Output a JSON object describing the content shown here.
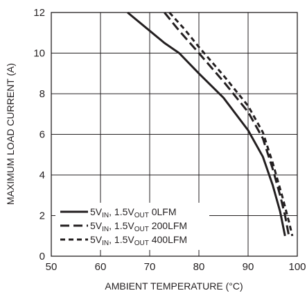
{
  "chart_data": {
    "type": "line",
    "xlabel": "AMBIENT TEMPERATURE (°C)",
    "ylabel": "MAXIMUM LOAD CURRENT (A)",
    "xlim": [
      50,
      100
    ],
    "ylim": [
      0,
      12
    ],
    "xticks": [
      50,
      60,
      70,
      80,
      90,
      100
    ],
    "yticks": [
      0,
      2,
      4,
      6,
      8,
      10,
      12
    ],
    "grid": true,
    "legend_position": "bottom-left",
    "series": [
      {
        "name": "5VIN, 1.5VOUT 0LFM",
        "legend": {
          "a": "5V",
          "a_sub": "IN",
          "b": ", 1.5V",
          "b_sub": "OUT",
          "c": " 0LFM"
        },
        "style": "solid",
        "x": [
          65.5,
          70,
          73,
          76,
          80,
          85,
          90,
          93,
          95,
          96.5,
          97.5
        ],
        "y": [
          12,
          11.1,
          10.5,
          10,
          9,
          7.8,
          6.2,
          4.9,
          3.5,
          2.2,
          1
        ]
      },
      {
        "name": "5VIN, 1.5VOUT 200LFM",
        "legend": {
          "a": "5V",
          "a_sub": "IN",
          "b": ", 1.5V",
          "b_sub": "OUT",
          "c": " 200LFM"
        },
        "style": "dash",
        "x": [
          73,
          76,
          80,
          85,
          90,
          93,
          95,
          96.5,
          97.5,
          98.3
        ],
        "y": [
          12,
          11.1,
          10,
          8.6,
          7.1,
          5.8,
          4.3,
          3,
          2,
          1
        ]
      },
      {
        "name": "5VIN, 1.5VOUT 400LFM",
        "legend": {
          "a": "5V",
          "a_sub": "IN",
          "b": ", 1.5V",
          "b_sub": "OUT",
          "c": " 400LFM"
        },
        "style": "shortdash",
        "x": [
          74,
          77,
          80,
          85,
          90,
          93,
          95,
          97,
          98.3,
          99
        ],
        "y": [
          12,
          11.2,
          10.3,
          8.9,
          7.4,
          6.1,
          4.6,
          2.9,
          1.7,
          1
        ]
      }
    ]
  }
}
